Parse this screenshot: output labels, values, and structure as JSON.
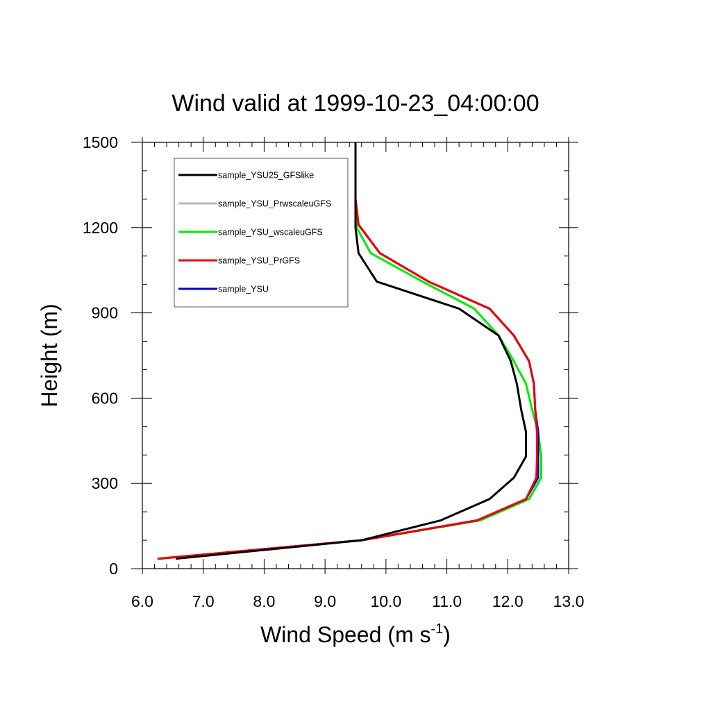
{
  "chart_data": {
    "type": "line",
    "title": "Wind valid at 1999-10-23_04:00:00",
    "xlabel": {
      "base": "Wind Speed (m s",
      "superscript": "-1",
      "close": ")"
    },
    "ylabel": "Height (m)",
    "xlim": [
      6.0,
      13.0
    ],
    "ylim": [
      0,
      1500
    ],
    "x_ticks": [
      "6.0",
      "7.0",
      "8.0",
      "9.0",
      "10.0",
      "11.0",
      "12.0",
      "13.0"
    ],
    "y_ticks": [
      "0",
      "300",
      "600",
      "900",
      "1200",
      "1500"
    ],
    "grid": false,
    "legend_position": "top-left",
    "series": [
      {
        "name": "sample_YSU25_GFSlike",
        "color": "#000000",
        "points": [
          [
            6.55,
            35
          ],
          [
            9.6,
            100
          ],
          [
            10.9,
            170
          ],
          [
            11.7,
            245
          ],
          [
            12.1,
            320
          ],
          [
            12.3,
            395
          ],
          [
            12.3,
            480
          ],
          [
            12.22,
            560
          ],
          [
            12.15,
            650
          ],
          [
            12.05,
            730
          ],
          [
            11.85,
            820
          ],
          [
            11.2,
            915
          ],
          [
            9.85,
            1010
          ],
          [
            9.55,
            1110
          ],
          [
            9.5,
            1200
          ],
          [
            9.5,
            1300
          ],
          [
            9.5,
            1400
          ],
          [
            9.5,
            1500
          ]
        ]
      },
      {
        "name": "sample_YSU_PrwscaleuGFS",
        "color": "#bbbbbb",
        "points": [
          [
            6.28,
            35
          ],
          [
            9.6,
            100
          ],
          [
            11.55,
            170
          ],
          [
            12.35,
            245
          ],
          [
            12.55,
            320
          ],
          [
            12.55,
            395
          ],
          [
            12.5,
            480
          ],
          [
            12.4,
            560
          ],
          [
            12.3,
            650
          ],
          [
            12.1,
            730
          ],
          [
            11.85,
            820
          ],
          [
            11.45,
            915
          ],
          [
            10.6,
            1010
          ],
          [
            9.75,
            1110
          ],
          [
            9.52,
            1200
          ],
          [
            9.5,
            1300
          ]
        ]
      },
      {
        "name": "sample_YSU_wscaleuGFS",
        "color": "#00ee00",
        "points": [
          [
            6.28,
            35
          ],
          [
            9.6,
            100
          ],
          [
            11.55,
            170
          ],
          [
            12.35,
            245
          ],
          [
            12.55,
            320
          ],
          [
            12.55,
            395
          ],
          [
            12.5,
            480
          ],
          [
            12.4,
            560
          ],
          [
            12.3,
            650
          ],
          [
            12.1,
            730
          ],
          [
            11.85,
            820
          ],
          [
            11.45,
            915
          ],
          [
            10.6,
            1010
          ],
          [
            9.75,
            1110
          ],
          [
            9.52,
            1200
          ],
          [
            9.5,
            1300
          ]
        ]
      },
      {
        "name": "sample_YSU_PrGFS",
        "color": "#ee0000",
        "points": [
          [
            6.25,
            35
          ],
          [
            9.6,
            100
          ],
          [
            11.5,
            170
          ],
          [
            12.3,
            245
          ],
          [
            12.47,
            320
          ],
          [
            12.48,
            395
          ],
          [
            12.48,
            480
          ],
          [
            12.45,
            560
          ],
          [
            12.43,
            650
          ],
          [
            12.35,
            730
          ],
          [
            12.1,
            820
          ],
          [
            11.7,
            915
          ],
          [
            10.7,
            1010
          ],
          [
            9.9,
            1110
          ],
          [
            9.55,
            1210
          ],
          [
            9.5,
            1300
          ]
        ]
      },
      {
        "name": "sample_YSU",
        "color": "#0000cc",
        "points": [
          [
            6.25,
            35
          ],
          [
            9.6,
            100
          ],
          [
            11.5,
            170
          ],
          [
            12.3,
            245
          ],
          [
            12.5,
            320
          ],
          [
            12.5,
            395
          ],
          [
            12.5,
            480
          ],
          [
            12.45,
            560
          ],
          [
            12.43,
            650
          ],
          [
            12.35,
            730
          ],
          [
            12.1,
            820
          ],
          [
            11.7,
            915
          ],
          [
            10.7,
            1010
          ],
          [
            9.9,
            1110
          ],
          [
            9.55,
            1210
          ],
          [
            9.5,
            1300
          ]
        ]
      }
    ],
    "draw_order": [
      1,
      2,
      4,
      3,
      0
    ]
  }
}
